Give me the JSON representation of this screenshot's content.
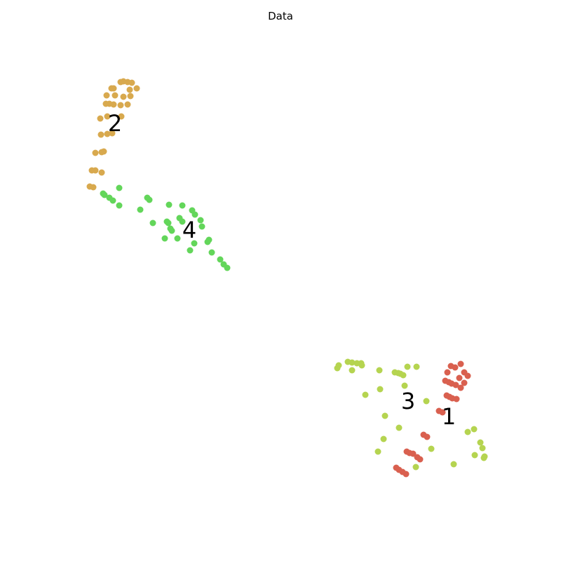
{
  "chart_data": {
    "type": "scatter",
    "title": "Data",
    "xlabel": "",
    "ylabel": "",
    "axes_visible": false,
    "grid": false,
    "legend": "none",
    "xlim": [
      0,
      800
    ],
    "ylim": [
      800,
      0
    ],
    "series": [
      {
        "cluster": "1",
        "color": "#d9604f",
        "label_at": [
          640,
          204
        ],
        "points": [
          [
            565,
            133
          ],
          [
            569,
            130
          ],
          [
            574,
            127
          ],
          [
            579,
            124
          ],
          [
            580,
            156
          ],
          [
            584,
            154
          ],
          [
            589,
            153
          ],
          [
            595,
            148
          ],
          [
            599,
            145
          ],
          [
            604,
            180
          ],
          [
            609,
            177
          ],
          [
            626,
            214
          ],
          [
            631,
            212
          ],
          [
            637,
            236
          ],
          [
            641,
            234
          ],
          [
            645,
            232
          ],
          [
            651,
            231
          ],
          [
            657,
            247
          ],
          [
            662,
            254
          ],
          [
            667,
            264
          ],
          [
            662,
            269
          ],
          [
            635,
            257
          ],
          [
            640,
            255
          ],
          [
            644,
            253
          ],
          [
            650,
            251
          ],
          [
            655,
            261
          ],
          [
            638,
            269
          ],
          [
            643,
            278
          ],
          [
            649,
            276
          ],
          [
            657,
            281
          ]
        ]
      },
      {
        "cluster": "3",
        "color": "#b5d450",
        "label_at": [
          582,
          226
        ],
        "points": [
          [
            593,
            134
          ],
          [
            647,
            138
          ],
          [
            539,
            156
          ],
          [
            615,
            160
          ],
          [
            677,
            151
          ],
          [
            690,
            147
          ],
          [
            691,
            149
          ],
          [
            688,
            161
          ],
          [
            685,
            169
          ],
          [
            667,
            184
          ],
          [
            676,
            188
          ],
          [
            547,
            174
          ],
          [
            569,
            190
          ],
          [
            549,
            207
          ],
          [
            608,
            228
          ],
          [
            521,
            237
          ],
          [
            542,
            245
          ],
          [
            577,
            250
          ],
          [
            563,
            269
          ],
          [
            568,
            268
          ],
          [
            571,
            267
          ],
          [
            575,
            265
          ],
          [
            541,
            272
          ],
          [
            581,
            277
          ],
          [
            594,
            277
          ],
          [
            481,
            275
          ],
          [
            483,
            279
          ],
          [
            502,
            272
          ],
          [
            496,
            284
          ],
          [
            502,
            283
          ],
          [
            509,
            282
          ],
          [
            515,
            282
          ],
          [
            516,
            279
          ]
        ]
      },
      {
        "cluster": "4",
        "color": "#63d65a",
        "label_at": [
          270,
          470
        ],
        "points": [
          [
            324,
            418
          ],
          [
            319,
            423
          ],
          [
            314,
            430
          ],
          [
            302,
            440
          ],
          [
            271,
            443
          ],
          [
            277,
            453
          ],
          [
            296,
            455
          ],
          [
            298,
            458
          ],
          [
            235,
            460
          ],
          [
            253,
            460
          ],
          [
            245,
            471
          ],
          [
            243,
            474
          ],
          [
            288,
            477
          ],
          [
            240,
            482
          ],
          [
            238,
            484
          ],
          [
            218,
            482
          ],
          [
            260,
            484
          ],
          [
            286,
            486
          ],
          [
            278,
            494
          ],
          [
            256,
            489
          ],
          [
            274,
            500
          ],
          [
            200,
            501
          ],
          [
            170,
            507
          ],
          [
            161,
            514
          ],
          [
            156,
            518
          ],
          [
            149,
            522
          ],
          [
            147,
            524
          ],
          [
            213,
            515
          ],
          [
            210,
            518
          ],
          [
            241,
            508
          ],
          [
            260,
            507
          ],
          [
            170,
            532
          ]
        ]
      },
      {
        "cluster": "2",
        "color": "#d8a94e",
        "label_at": [
          164,
          622
        ],
        "points": [
          [
            128,
            534
          ],
          [
            133,
            533
          ],
          [
            131,
            557
          ],
          [
            136,
            557
          ],
          [
            145,
            554
          ],
          [
            136,
            582
          ],
          [
            145,
            583
          ],
          [
            148,
            584
          ],
          [
            144,
            608
          ],
          [
            153,
            609
          ],
          [
            160,
            610
          ],
          [
            143,
            631
          ],
          [
            153,
            634
          ],
          [
            173,
            634
          ],
          [
            151,
            652
          ],
          [
            156,
            652
          ],
          [
            162,
            651
          ],
          [
            172,
            650
          ],
          [
            182,
            651
          ],
          [
            152,
            664
          ],
          [
            164,
            664
          ],
          [
            176,
            662
          ],
          [
            186,
            663
          ],
          [
            159,
            674
          ],
          [
            162,
            674
          ],
          [
            185,
            672
          ],
          [
            195,
            674
          ],
          [
            172,
            683
          ],
          [
            176,
            684
          ],
          [
            182,
            683
          ],
          [
            188,
            682
          ]
        ]
      }
    ]
  }
}
